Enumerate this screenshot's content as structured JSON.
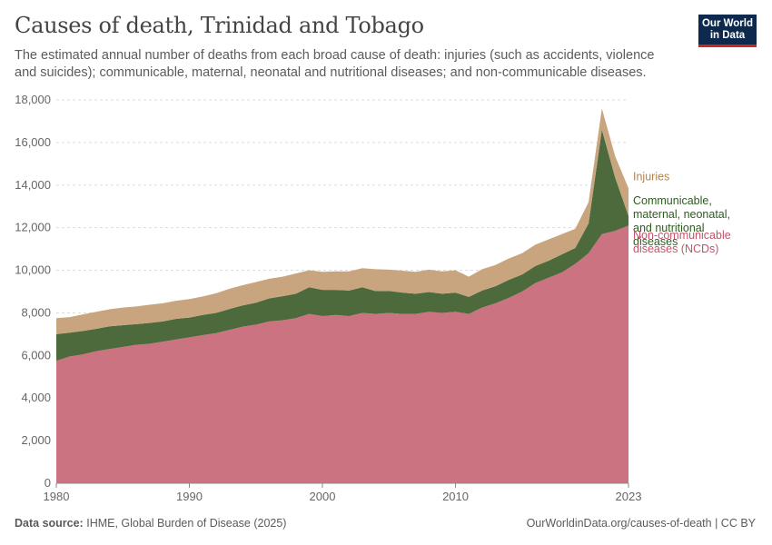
{
  "header": {
    "title": "Causes of death, Trinidad and Tobago",
    "subtitle": "The estimated annual number of deaths from each broad cause of death: injuries (such as accidents, violence and suicides); communicable, maternal, neonatal and nutritional diseases; and non-communicable diseases."
  },
  "logo": {
    "line1": "Our World",
    "line2": "in Data"
  },
  "footer": {
    "source_label": "Data source:",
    "source_text": "IHME, Global Burden of Disease (2025)",
    "url": "OurWorldinData.org/causes-of-death | CC BY"
  },
  "colors": {
    "ncd": "#cc7382",
    "communicable": "#4c6a3b",
    "injuries": "#c9a57f",
    "ncd_label": "#c4536a",
    "communicable_label": "#2f5a22",
    "injuries_label": "#b08350",
    "grid": "#dddddd",
    "axis": "#888888"
  },
  "chart_data": {
    "type": "area",
    "stacked": true,
    "title": "Causes of death, Trinidad and Tobago",
    "xlabel": "",
    "ylabel": "",
    "x": [
      1980,
      1981,
      1982,
      1983,
      1984,
      1985,
      1986,
      1987,
      1988,
      1989,
      1990,
      1991,
      1992,
      1993,
      1994,
      1995,
      1996,
      1997,
      1998,
      1999,
      2000,
      2001,
      2002,
      2003,
      2004,
      2005,
      2006,
      2007,
      2008,
      2009,
      2010,
      2011,
      2012,
      2013,
      2014,
      2015,
      2016,
      2017,
      2018,
      2019,
      2020,
      2021,
      2022,
      2023
    ],
    "xlim": [
      1980,
      2023
    ],
    "xticks": [
      "1980",
      "1990",
      "2000",
      "2010",
      "2023"
    ],
    "ylim": [
      0,
      18000
    ],
    "yticks": [
      "0",
      "2,000",
      "4,000",
      "6,000",
      "8,000",
      "10,000",
      "12,000",
      "14,000",
      "16,000",
      "18,000"
    ],
    "series": [
      {
        "name": "Non-communicable diseases (NCDs)",
        "values": [
          5750,
          5950,
          6050,
          6200,
          6300,
          6400,
          6500,
          6550,
          6650,
          6750,
          6850,
          6950,
          7050,
          7200,
          7350,
          7450,
          7600,
          7650,
          7750,
          7950,
          7850,
          7900,
          7850,
          8000,
          7950,
          8000,
          7950,
          7950,
          8050,
          8000,
          8050,
          7950,
          8250,
          8450,
          8700,
          9000,
          9400,
          9650,
          9900,
          10300,
          10800,
          11700,
          11850,
          12100
        ]
      },
      {
        "name": "Communicable, maternal, neonatal, and nutritional diseases",
        "values": [
          1250,
          1120,
          1100,
          1050,
          1070,
          1020,
          970,
          980,
          950,
          970,
          930,
          950,
          950,
          980,
          1000,
          1030,
          1080,
          1130,
          1150,
          1250,
          1230,
          1180,
          1200,
          1200,
          1070,
          1030,
          1000,
          950,
          930,
          900,
          900,
          800,
          800,
          800,
          850,
          800,
          800,
          800,
          850,
          750,
          1400,
          4900,
          2500,
          450
        ]
      },
      {
        "name": "Injuries",
        "values": [
          750,
          730,
          780,
          800,
          800,
          830,
          830,
          850,
          850,
          850,
          870,
          870,
          920,
          950,
          950,
          970,
          920,
          920,
          950,
          800,
          850,
          870,
          900,
          900,
          1030,
          1000,
          1030,
          1030,
          1050,
          1050,
          1050,
          950,
          1000,
          1000,
          1000,
          1000,
          1000,
          1000,
          950,
          900,
          1000,
          1000,
          1000,
          1300
        ]
      }
    ],
    "legend": [
      "Injuries",
      "Communicable, maternal, neonatal, and nutritional diseases",
      "Non-communicable diseases (NCDs)"
    ],
    "legend_lines": {
      "injuries": [
        "Injuries"
      ],
      "communicable": [
        "Communicable,",
        "maternal, neonatal,",
        "and nutritional",
        "diseases"
      ],
      "ncd": [
        "Non-communicable",
        "diseases (NCDs)"
      ]
    }
  }
}
